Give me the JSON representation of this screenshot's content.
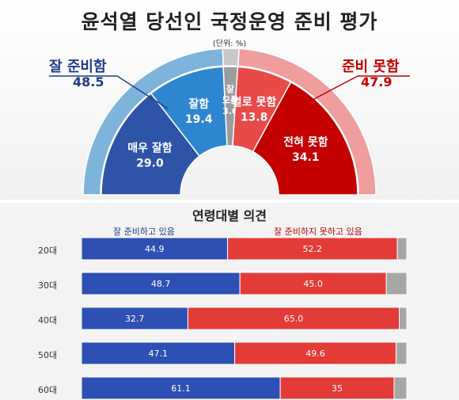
{
  "title": "윤석열 당선인 국정운영 준비 평가",
  "unit": "(단위: %)",
  "left_group": {
    "label": "잘 준비함",
    "value": "48.5",
    "color": "#1f3c88"
  },
  "right_group": {
    "label": "준비 못함",
    "value": "47.9",
    "color": "#c00000"
  },
  "chart_data": [
    {
      "type": "pie",
      "subtype": "half-donut",
      "title": "윤석열 당선인 국정운영 준비 평가",
      "unit": "(단위: %)",
      "groups": [
        {
          "name": "잘 준비함",
          "value": 48.5
        },
        {
          "name": "준비 못함",
          "value": 47.9
        }
      ],
      "slices": [
        {
          "label": "매우 잘함",
          "value": 29.0,
          "value_text": "29.0",
          "color": "#2e54a8"
        },
        {
          "label": "잘함",
          "value": 19.4,
          "value_text": "19.4",
          "color": "#2f86d0"
        },
        {
          "label": "잘 모름",
          "label_lines": [
            "잘",
            "모름"
          ],
          "value": 3.6,
          "value_text": "3.6",
          "color": "#9c9c9c"
        },
        {
          "label": "별로 못함",
          "value": 13.8,
          "value_text": "13.8",
          "color": "#e84a48"
        },
        {
          "label": "전혀 못함",
          "value": 34.1,
          "value_text": "34.1",
          "color": "#c40000"
        }
      ],
      "outer_ring": [
        {
          "value": 48.5,
          "color": "#7eb3dc"
        },
        {
          "value": 3.6,
          "color": "#c8c8c8"
        },
        {
          "value": 47.9,
          "color": "#ef9d9d"
        }
      ]
    },
    {
      "type": "bar",
      "subtype": "stacked-horizontal",
      "title": "연령대별 의견",
      "categories": [
        "20대",
        "30대",
        "40대",
        "50대",
        "60대"
      ],
      "series": [
        {
          "name": "잘 준비하고 있음",
          "color": "#2e50b4",
          "values": [
            44.9,
            48.7,
            32.7,
            47.1,
            61.1
          ],
          "labels": [
            "44.9",
            "48.7",
            "32.7",
            "47.1",
            "61.1"
          ]
        },
        {
          "name": "잘 준비하지 못하고 있음",
          "color": "#e33b38",
          "values": [
            52.2,
            45.0,
            65.0,
            49.6,
            35.0
          ],
          "labels": [
            "52.2",
            "45.0",
            "65.0",
            "49.6",
            "35"
          ]
        },
        {
          "name": "",
          "color": "#a6a6a6",
          "values": [
            2.9,
            6.3,
            2.3,
            3.3,
            3.9
          ]
        }
      ],
      "xlim": [
        0,
        100
      ]
    }
  ]
}
